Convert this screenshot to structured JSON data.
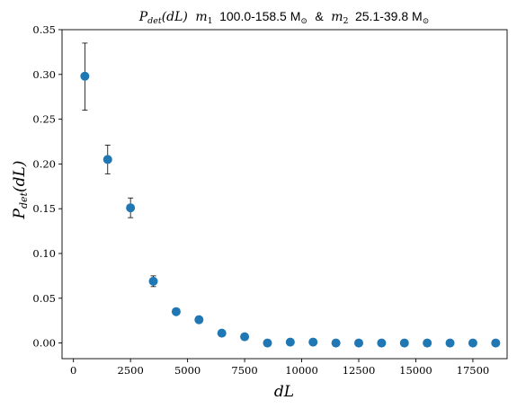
{
  "colors": {
    "marker": "#1f77b4",
    "errorbar": "#000000",
    "axes": "#000000",
    "background": "#ffffff"
  },
  "chart_data": {
    "type": "scatter",
    "title": "P_det(dL) m_1 100.0-158.5 M_⊙ & m_2 25.1-39.8 M_⊙",
    "title_parts": {
      "p": "P",
      "p_sub": "det",
      "p_arg": "(dL)",
      "m1": "m",
      "m1_sub": "1",
      "m1_range": "100.0-158.5 M",
      "m1_unit_sub": "⊙",
      "amp": "&",
      "m2": "m",
      "m2_sub": "2",
      "m2_range": "25.1-39.8 M",
      "m2_unit_sub": "⊙"
    },
    "xlabel": "dL",
    "ylabel": "P_det(dL)",
    "ylabel_parts": {
      "p": "P",
      "p_sub": "det",
      "p_arg": "(dL)"
    },
    "xlim": [
      -500,
      19000
    ],
    "ylim": [
      -0.0175,
      0.35
    ],
    "xticks": [
      0,
      2500,
      5000,
      7500,
      10000,
      12500,
      15000,
      17500
    ],
    "xtick_labels": [
      "0",
      "2500",
      "5000",
      "7500",
      "10000",
      "12500",
      "15000",
      "17500"
    ],
    "yticks": [
      0.0,
      0.05,
      0.1,
      0.15,
      0.2,
      0.25,
      0.3,
      0.35
    ],
    "ytick_labels": [
      "0.00",
      "0.05",
      "0.10",
      "0.15",
      "0.20",
      "0.25",
      "0.30",
      "0.35"
    ],
    "grid": false,
    "points": [
      {
        "x": 500,
        "y": 0.298,
        "yerr_low": 0.26,
        "yerr_high": 0.335
      },
      {
        "x": 1500,
        "y": 0.205,
        "yerr_low": 0.189,
        "yerr_high": 0.221
      },
      {
        "x": 2500,
        "y": 0.151,
        "yerr_low": 0.14,
        "yerr_high": 0.162
      },
      {
        "x": 3500,
        "y": 0.069,
        "yerr_low": 0.063,
        "yerr_high": 0.075
      },
      {
        "x": 4500,
        "y": 0.035,
        "yerr_low": 0.032,
        "yerr_high": 0.038
      },
      {
        "x": 5500,
        "y": 0.026,
        "yerr_low": 0.023,
        "yerr_high": 0.029
      },
      {
        "x": 6500,
        "y": 0.011,
        "yerr_low": 0.009,
        "yerr_high": 0.013
      },
      {
        "x": 7500,
        "y": 0.007,
        "yerr_low": 0.005,
        "yerr_high": 0.009
      },
      {
        "x": 8500,
        "y": 0.0,
        "yerr_low": -0.001,
        "yerr_high": 0.001
      },
      {
        "x": 9500,
        "y": 0.001,
        "yerr_low": 0.0,
        "yerr_high": 0.002
      },
      {
        "x": 10500,
        "y": 0.001,
        "yerr_low": 0.0,
        "yerr_high": 0.002
      },
      {
        "x": 11500,
        "y": 0.0,
        "yerr_low": -0.001,
        "yerr_high": 0.001
      },
      {
        "x": 12500,
        "y": 0.0,
        "yerr_low": 0.0,
        "yerr_high": 0.0
      },
      {
        "x": 13500,
        "y": 0.0,
        "yerr_low": -0.001,
        "yerr_high": 0.001
      },
      {
        "x": 14500,
        "y": 0.0,
        "yerr_low": 0.0,
        "yerr_high": 0.0
      },
      {
        "x": 15500,
        "y": 0.0,
        "yerr_low": 0.0,
        "yerr_high": 0.0
      },
      {
        "x": 16500,
        "y": 0.0,
        "yerr_low": 0.0,
        "yerr_high": 0.0
      },
      {
        "x": 17500,
        "y": 0.0,
        "yerr_low": 0.0,
        "yerr_high": 0.0
      },
      {
        "x": 18500,
        "y": 0.0,
        "yerr_low": 0.0,
        "yerr_high": 0.0
      }
    ]
  }
}
